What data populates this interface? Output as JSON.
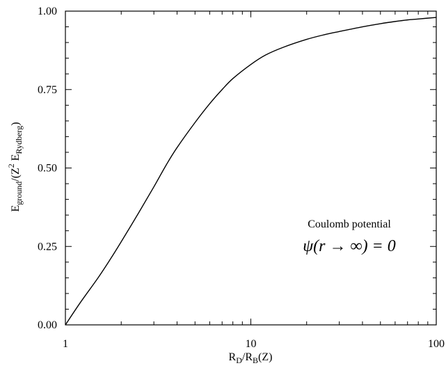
{
  "chart_data": {
    "type": "line",
    "title": "",
    "xscale": "log",
    "xlim": [
      1,
      100
    ],
    "ylim": [
      0,
      1
    ],
    "grid": false,
    "legend": "none",
    "x_ticks": [
      "1",
      "10",
      "100"
    ],
    "y_ticks": [
      "0.00",
      "0.25",
      "0.50",
      "0.75",
      "1.00"
    ],
    "xlabel": {
      "base1": "R",
      "sub1": "D",
      "mid": "/R",
      "sub2": "B",
      "tail": "(Z)"
    },
    "ylabel": {
      "base1": "E",
      "sub1": "ground",
      "mid": "/(Z",
      "sup": "2",
      "mid2": " E",
      "sub2": "Rydberg",
      "tail": ")"
    },
    "annotations": {
      "line1": "Coulomb potential",
      "formula": "ψ(r → ∞) = 0"
    },
    "series": [
      {
        "color": "#000000",
        "x": [
          1,
          1.2,
          1.5,
          1.75,
          2,
          2.5,
          3,
          3.5,
          4,
          5,
          6,
          7,
          8,
          10,
          12,
          15,
          20,
          25,
          30,
          40,
          50,
          60,
          70,
          80,
          100
        ],
        "y": [
          0.0,
          0.07,
          0.15,
          0.21,
          0.265,
          0.36,
          0.44,
          0.51,
          0.565,
          0.645,
          0.705,
          0.75,
          0.785,
          0.83,
          0.86,
          0.885,
          0.91,
          0.925,
          0.935,
          0.95,
          0.96,
          0.967,
          0.972,
          0.975,
          0.98
        ]
      }
    ]
  }
}
